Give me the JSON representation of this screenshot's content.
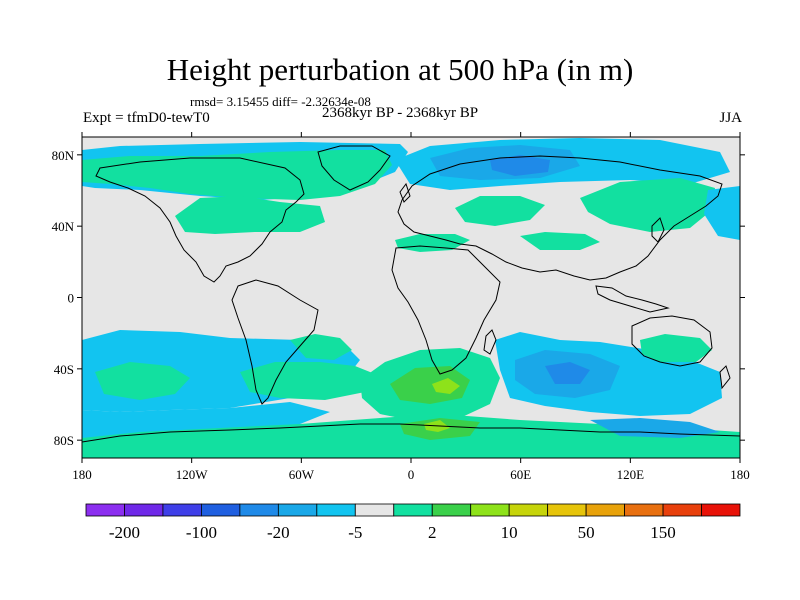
{
  "title": "Height perturbation at 500 hPa (in m)",
  "stats": "rmsd= 3.15455 diff= -2.32634e-08",
  "experiment": "Expt = tfmD0-tewT0",
  "period": "2368kyr BP - 2368kyr BP",
  "season": "JJA",
  "axes": {
    "x_ticks": [
      "180",
      "120W",
      "60W",
      "0",
      "60E",
      "120E",
      "180"
    ],
    "y_ticks": [
      "80N",
      "40N",
      "0",
      "40S",
      "80S"
    ]
  },
  "colorbar": {
    "colors": [
      "#8c2ff0",
      "#6f28e8",
      "#3f3fe8",
      "#1f5fe0",
      "#1f8ae8",
      "#1aa8e8",
      "#12c4f0",
      "#e6e6e6",
      "#12e0a0",
      "#3ad04a",
      "#8ee21a",
      "#c6d40a",
      "#e6c40a",
      "#e8a20a",
      "#e87010",
      "#e8400c",
      "#e81208"
    ],
    "labels": [
      "-200",
      "-100",
      "-20",
      "-5",
      "2",
      "10",
      "50",
      "150"
    ]
  },
  "chart_data": {
    "type": "heatmap",
    "title": "Height perturbation at 500 hPa (in m)",
    "variable": "500 hPa height perturbation",
    "units": "m",
    "xlabel": "",
    "ylabel": "",
    "x_range": [
      -180,
      180
    ],
    "y_range": [
      -90,
      90
    ],
    "contour_levels_labeled": [
      -200,
      -100,
      -20,
      -5,
      2,
      10,
      50,
      150
    ],
    "rmsd": 3.15455,
    "diff": -2.32634e-08
  }
}
